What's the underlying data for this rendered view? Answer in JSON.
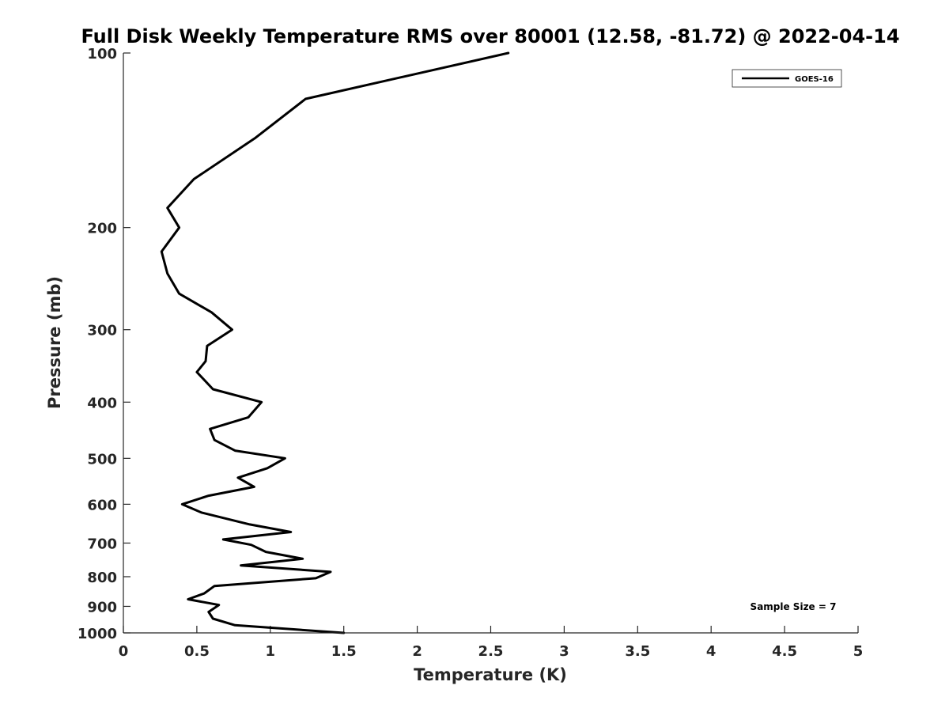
{
  "chart_data": {
    "type": "line",
    "title": "Full Disk Weekly Temperature RMS over 80001 (12.58, -81.72) @ 2022-04-14",
    "xlabel": "Temperature (K)",
    "ylabel": "Pressure (mb)",
    "xlim": [
      0,
      5
    ],
    "ylim": [
      100,
      1000
    ],
    "yscale": "log",
    "y_reversed": true,
    "x_ticks": [
      0,
      0.5,
      1,
      1.5,
      2,
      2.5,
      3,
      3.5,
      4,
      4.5,
      5
    ],
    "x_tick_labels": [
      "0",
      "0.5",
      "1",
      "1.5",
      "2",
      "2.5",
      "3",
      "3.5",
      "4",
      "4.5",
      "5"
    ],
    "y_ticks": [
      100,
      200,
      300,
      400,
      500,
      600,
      700,
      800,
      900,
      1000
    ],
    "y_tick_labels": [
      "100",
      "200",
      "300",
      "400",
      "500",
      "600",
      "700",
      "800",
      "900",
      "1000"
    ],
    "grid": false,
    "legend_position": "top-right",
    "colors": {
      "series": "#000000",
      "axes": "#262626"
    },
    "series": [
      {
        "name": "GOES-16",
        "color": "#000000",
        "x": [
          2.62,
          1.24,
          0.9,
          0.48,
          0.3,
          0.38,
          0.26,
          0.3,
          0.38,
          0.6,
          0.74,
          0.57,
          0.56,
          0.5,
          0.61,
          0.94,
          0.85,
          0.59,
          0.62,
          0.76,
          1.1,
          0.98,
          0.78,
          0.89,
          0.58,
          0.4,
          0.53,
          0.86,
          1.14,
          0.68,
          0.87,
          0.97,
          1.22,
          0.8,
          1.41,
          1.31,
          0.62,
          0.55,
          0.44,
          0.65,
          0.58,
          0.61,
          0.76,
          1.5
        ],
        "y": [
          100,
          120,
          140,
          165,
          185,
          200,
          220,
          240,
          260,
          280,
          300,
          320,
          340,
          355,
          380,
          400,
          425,
          445,
          465,
          485,
          500,
          520,
          540,
          560,
          580,
          600,
          620,
          650,
          670,
          690,
          705,
          725,
          745,
          765,
          785,
          805,
          830,
          855,
          875,
          895,
          920,
          945,
          970,
          1000
        ]
      }
    ],
    "annotations": [
      "Sample Size = 7"
    ]
  }
}
